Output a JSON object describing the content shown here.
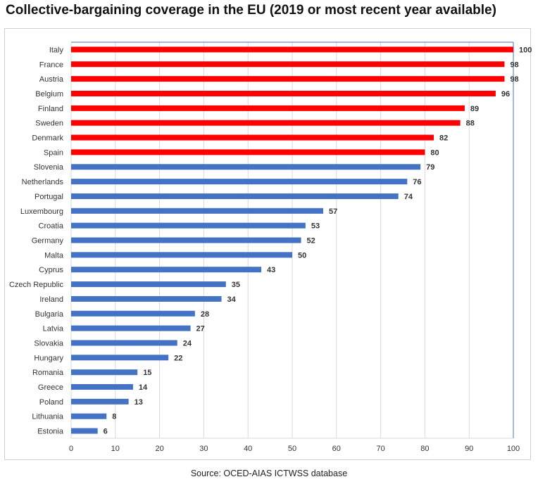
{
  "title": "Collective-bargaining coverage in the EU (2019 or most recent year available)",
  "source": "Source: OCED-AIAS ICTWSS database",
  "colors": {
    "highlight": "#ff0000",
    "normal": "#4472c4",
    "grid": "#d9d9d9",
    "axis": "#4472c4"
  },
  "chart_data": {
    "type": "bar",
    "orientation": "horizontal",
    "categories": [
      "Italy",
      "France",
      "Austria",
      "Belgium",
      "Finland",
      "Sweden",
      "Denmark",
      "Spain",
      "Slovenia",
      "Netherlands",
      "Portugal",
      "Luxembourg",
      "Croatia",
      "Germany",
      "Malta",
      "Cyprus",
      "Czech Republic",
      "Ireland",
      "Bulgaria",
      "Latvia",
      "Slovakia",
      "Hungary",
      "Romania",
      "Greece",
      "Poland",
      "Lithuania",
      "Estonia"
    ],
    "values": [
      100,
      98,
      98,
      96,
      89,
      88,
      82,
      80,
      79,
      76,
      74,
      57,
      53,
      52,
      50,
      43,
      35,
      34,
      28,
      27,
      24,
      22,
      15,
      14,
      13,
      8,
      6
    ],
    "highlight_count": 8,
    "xlim": [
      0,
      100
    ],
    "xticks": [
      0,
      10,
      20,
      30,
      40,
      50,
      60,
      70,
      80,
      90,
      100
    ],
    "grid": true,
    "legend": "none"
  }
}
